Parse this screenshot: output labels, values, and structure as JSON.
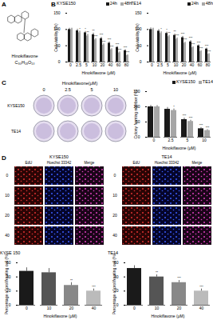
{
  "chart_data": [
    {
      "type": "bar",
      "title": "KYSE150",
      "x_label": "Hinokiflavone (μM)",
      "y_label": "Cell viability (%)",
      "categories": [
        "0",
        "2.5",
        "5",
        "10",
        "20",
        "40",
        "60",
        "80"
      ],
      "series": [
        {
          "name": "24h",
          "color": "#1a1a1a",
          "values": [
            100,
            96,
            90,
            84,
            72,
            58,
            45,
            35
          ],
          "errors": [
            4,
            5,
            4,
            5,
            4,
            4,
            3,
            3
          ],
          "significance": [
            null,
            null,
            "*",
            "**",
            "***",
            "***",
            "***",
            "***"
          ]
        },
        {
          "name": "48h",
          "color": "#a6a6a6",
          "values": [
            100,
            90,
            80,
            68,
            52,
            38,
            28,
            20
          ],
          "errors": [
            4,
            5,
            5,
            4,
            4,
            3,
            3,
            2
          ],
          "significance": [
            null,
            "*",
            "**",
            "***",
            "***",
            "***",
            "***",
            "***"
          ]
        }
      ],
      "ylim": [
        0,
        150
      ],
      "yticks": [
        0,
        50,
        100,
        150
      ],
      "legend": "top"
    },
    {
      "type": "bar",
      "title": "TE14",
      "x_label": "Hinokiflavone (μM)",
      "y_label": "Cell viability (%)",
      "categories": [
        "0",
        "2.5",
        "5",
        "10",
        "20",
        "40",
        "60",
        "80"
      ],
      "series": [
        {
          "name": "24h",
          "color": "#1a1a1a",
          "values": [
            100,
            95,
            88,
            82,
            75,
            62,
            50,
            40
          ],
          "errors": [
            5,
            5,
            4,
            4,
            4,
            4,
            3,
            3
          ],
          "significance": [
            null,
            null,
            "*",
            "**",
            "***",
            "***",
            "***",
            "***"
          ]
        },
        {
          "name": "48h",
          "color": "#a6a6a6",
          "values": [
            100,
            88,
            78,
            70,
            58,
            44,
            32,
            24
          ],
          "errors": [
            4,
            5,
            4,
            4,
            3,
            3,
            3,
            2
          ],
          "significance": [
            null,
            "*",
            "**",
            "***",
            "***",
            "***",
            "***",
            "***"
          ]
        }
      ],
      "ylim": [
        0,
        150
      ],
      "yticks": [
        0,
        50,
        100,
        150
      ],
      "legend": "top"
    },
    {
      "type": "bar",
      "x_label": "Hinokiflavone (μM)",
      "y_label": "Colony forming number (%)",
      "categories": [
        "0",
        "2.5",
        "5",
        "10"
      ],
      "series": [
        {
          "name": "KYSE150",
          "color": "#1a1a1a",
          "values": [
            100,
            92,
            58,
            28
          ],
          "errors": [
            5,
            6,
            5,
            4
          ],
          "significance": [
            null,
            null,
            "***",
            "***"
          ]
        },
        {
          "name": "TE14",
          "color": "#a6a6a6",
          "values": [
            100,
            88,
            52,
            22
          ],
          "errors": [
            4,
            5,
            4,
            3
          ],
          "significance": [
            null,
            "*",
            "***",
            "***"
          ]
        }
      ],
      "ylim": [
        0,
        150
      ],
      "yticks": [
        0,
        50,
        100,
        150
      ],
      "legend": "top"
    },
    {
      "type": "bar",
      "title": "KYSE 150",
      "x_label": "Hinokiflavone (μM)",
      "y_label": "Percentage of proliferating cell (%)",
      "categories": [
        "0",
        "10",
        "20",
        "40"
      ],
      "values": [
        48,
        46,
        28,
        20
      ],
      "errors": [
        5,
        6,
        4,
        3
      ],
      "significance": [
        null,
        null,
        "**",
        "***"
      ],
      "colors": [
        "#1a1a1a",
        "#555555",
        "#888888",
        "#bbbbbb"
      ],
      "ylim": [
        0,
        60
      ],
      "yticks": [
        0,
        20,
        40,
        60
      ]
    },
    {
      "type": "bar",
      "title": "TE14",
      "x_label": "Hinokiflavone (μM)",
      "y_label": "Percentage of proliferating cell (%)",
      "categories": [
        "0",
        "10",
        "20",
        "40"
      ],
      "values": [
        52,
        40,
        32,
        20
      ],
      "errors": [
        4,
        3,
        3,
        3
      ],
      "significance": [
        null,
        "**",
        "***",
        "***"
      ],
      "colors": [
        "#1a1a1a",
        "#555555",
        "#888888",
        "#bbbbbb"
      ],
      "ylim": [
        0,
        60
      ],
      "yticks": [
        0,
        20,
        40,
        60
      ]
    }
  ],
  "panel_labels": [
    "A",
    "B",
    "C",
    "D"
  ],
  "structure": {
    "name": "Hinokiflavone",
    "formula": "C₃₀H₁₈O₁₀"
  },
  "colony_plates": {
    "header": "Hinokiflavone(μM)",
    "columns": [
      "0",
      "2.5",
      "5",
      "10"
    ],
    "rows": [
      "KYSE150",
      "TE14"
    ]
  },
  "edu_images": [
    {
      "title": "KYSE150",
      "columns": [
        "EdU",
        "Hoechst 33342",
        "Merge"
      ],
      "rows": [
        "0",
        "10",
        "20",
        "40"
      ]
    },
    {
      "title": "TE14",
      "columns": [
        "EdU",
        "Hoechst 33342",
        "Merge"
      ],
      "rows": [
        "0",
        "10",
        "20",
        "40"
      ]
    }
  ]
}
